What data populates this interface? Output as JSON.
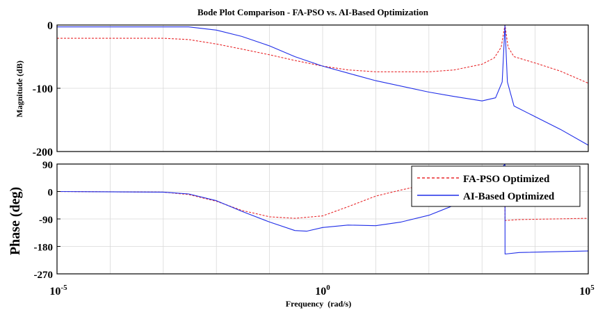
{
  "chart_data": {
    "type": "line",
    "title": "Bode Plot Comparison - FA-PSO vs. AI-Based Optimization",
    "x_scale": "log",
    "xlabel": "Frequency  (rad/s)",
    "xlim": [
      1e-05,
      100000
    ],
    "xticks": [
      {
        "value": 1e-05,
        "base": "10",
        "exp": "-5"
      },
      {
        "value": 1,
        "base": "10",
        "exp": "0"
      },
      {
        "value": 100000,
        "base": "10",
        "exp": "5"
      }
    ],
    "grid": true,
    "legend": {
      "placement": "top-right of phase panel",
      "entries": [
        "FA-PSO Optimized",
        "AI-Based Optimized"
      ]
    },
    "colors": {
      "fa_pso": "#e8282b",
      "ai_based": "#1f2de8"
    },
    "panels": [
      {
        "id": "magnitude",
        "ylabel": "Magnitude (dB)",
        "ylim": [
          -200,
          0
        ],
        "yticks": [
          0,
          -100,
          -200
        ],
        "ytick_labels": [
          "0",
          "-100",
          "-200"
        ],
        "series": [
          {
            "name": "FA-PSO Optimized",
            "style": "dashed",
            "points": [
              [
                1e-05,
                -21
              ],
              [
                0.001,
                -21
              ],
              [
                0.003,
                -23
              ],
              [
                0.01,
                -30
              ],
              [
                0.03,
                -38
              ],
              [
                0.1,
                -47
              ],
              [
                0.3,
                -56
              ],
              [
                1,
                -65
              ],
              [
                3,
                -71
              ],
              [
                10,
                -74
              ],
              [
                100,
                -74
              ],
              [
                300,
                -71
              ],
              [
                1000,
                -62
              ],
              [
                1700,
                -52
              ],
              [
                2300,
                -35
              ],
              [
                2700,
                0
              ],
              [
                3100,
                -35
              ],
              [
                4000,
                -50
              ],
              [
                10000,
                -60
              ],
              [
                30000,
                -73
              ],
              [
                100000,
                -92
              ]
            ]
          },
          {
            "name": "AI-Based Optimized",
            "style": "solid",
            "points": [
              [
                1e-05,
                -3
              ],
              [
                0.003,
                -3
              ],
              [
                0.01,
                -8
              ],
              [
                0.03,
                -18
              ],
              [
                0.1,
                -33
              ],
              [
                0.3,
                -50
              ],
              [
                1,
                -65
              ],
              [
                3,
                -76
              ],
              [
                10,
                -88
              ],
              [
                100,
                -106
              ],
              [
                300,
                -113
              ],
              [
                1000,
                -120
              ],
              [
                1800,
                -115
              ],
              [
                2400,
                -90
              ],
              [
                2700,
                -1
              ],
              [
                3000,
                -90
              ],
              [
                4000,
                -128
              ],
              [
                10000,
                -145
              ],
              [
                30000,
                -165
              ],
              [
                100000,
                -190
              ]
            ]
          }
        ]
      },
      {
        "id": "phase",
        "ylabel": "Phase (deg)",
        "ylim": [
          -270,
          90
        ],
        "yticks": [
          90,
          0,
          -90,
          -180,
          -270
        ],
        "ytick_labels": [
          "90",
          "0",
          "-90",
          "-180",
          "-270"
        ],
        "series": [
          {
            "name": "FA-PSO Optimized",
            "style": "dashed",
            "points": [
              [
                1e-05,
                0
              ],
              [
                0.001,
                -2
              ],
              [
                0.003,
                -10
              ],
              [
                0.01,
                -32
              ],
              [
                0.03,
                -62
              ],
              [
                0.1,
                -83
              ],
              [
                0.3,
                -88
              ],
              [
                1,
                -80
              ],
              [
                3,
                -50
              ],
              [
                10,
                -15
              ],
              [
                30,
                5
              ],
              [
                100,
                25
              ],
              [
                300,
                48
              ],
              [
                1000,
                68
              ],
              [
                2700,
                80
              ],
              [
                2710,
                -95
              ],
              [
                5000,
                -92
              ],
              [
                100000,
                -88
              ]
            ]
          },
          {
            "name": "AI-Based Optimized",
            "style": "solid",
            "points": [
              [
                1e-05,
                0
              ],
              [
                0.001,
                -2
              ],
              [
                0.003,
                -8
              ],
              [
                0.01,
                -30
              ],
              [
                0.03,
                -65
              ],
              [
                0.1,
                -100
              ],
              [
                0.3,
                -128
              ],
              [
                0.5,
                -130
              ],
              [
                1,
                -118
              ],
              [
                3,
                -110
              ],
              [
                10,
                -112
              ],
              [
                30,
                -100
              ],
              [
                100,
                -78
              ],
              [
                300,
                -45
              ],
              [
                1000,
                0
              ],
              [
                2700,
                90
              ],
              [
                2710,
                -205
              ],
              [
                5000,
                -200
              ],
              [
                100000,
                -195
              ]
            ]
          }
        ]
      }
    ]
  }
}
